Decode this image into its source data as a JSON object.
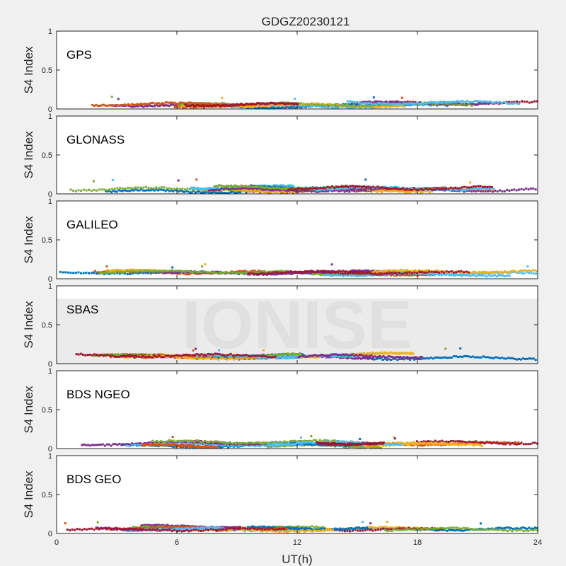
{
  "figure": {
    "title": "GDGZ20230121",
    "xlabel": "UT(h)",
    "x_ticks": [
      "0",
      "6",
      "12",
      "18",
      "24"
    ],
    "watermark": "IONISE"
  },
  "colors": {
    "background": "#f0f0f0",
    "axes_face": "#ffffff",
    "axis_line": "#262626",
    "watermark": "#e0e0e0",
    "series": [
      "#0072bd",
      "#d95319",
      "#edb120",
      "#7e2f8e",
      "#77ac30",
      "#4dbeee",
      "#a2142f"
    ]
  },
  "chart_data": [
    {
      "type": "scatter",
      "panel_label": "GPS",
      "ylabel": "S4 Index",
      "y_ticks": [
        "0",
        "0.5",
        "1"
      ],
      "xlim": [
        0,
        24
      ],
      "ylim": [
        0,
        1
      ],
      "typical_s4_range": [
        0.03,
        0.12
      ],
      "occasional_max": 0.17
    },
    {
      "type": "scatter",
      "panel_label": "GLONASS",
      "ylabel": "S4 Index",
      "y_ticks": [
        "0",
        "0.5",
        "1"
      ],
      "xlim": [
        0,
        24
      ],
      "ylim": [
        0,
        1
      ],
      "typical_s4_range": [
        0.03,
        0.13
      ],
      "occasional_max": 0.19
    },
    {
      "type": "scatter",
      "panel_label": "GALILEO",
      "ylabel": "S4 Index",
      "y_ticks": [
        "0",
        "0.5",
        "1"
      ],
      "xlim": [
        0,
        24
      ],
      "ylim": [
        0,
        1
      ],
      "typical_s4_range": [
        0.05,
        0.13
      ],
      "occasional_max": 0.2
    },
    {
      "type": "scatter",
      "panel_label": "SBAS",
      "ylabel": "S4 Index",
      "y_ticks": [
        "0",
        "0.5",
        "1"
      ],
      "xlim": [
        0,
        24
      ],
      "ylim": [
        0,
        1
      ],
      "typical_s4_range": [
        0.07,
        0.16
      ],
      "occasional_max": 0.21
    },
    {
      "type": "scatter",
      "panel_label": "BDS NGEO",
      "ylabel": "S4 Index",
      "y_ticks": [
        "0",
        "0.5",
        "1"
      ],
      "xlim": [
        0,
        24
      ],
      "ylim": [
        0,
        1
      ],
      "typical_s4_range": [
        0.03,
        0.12
      ],
      "occasional_max": 0.16
    },
    {
      "type": "scatter",
      "panel_label": "BDS GEO",
      "ylabel": "S4 Index",
      "y_ticks": [
        "0",
        "0.5",
        "1"
      ],
      "xlim": [
        0,
        24
      ],
      "ylim": [
        0,
        1
      ],
      "typical_s4_range": [
        0.04,
        0.12
      ],
      "occasional_max": 0.16
    }
  ]
}
